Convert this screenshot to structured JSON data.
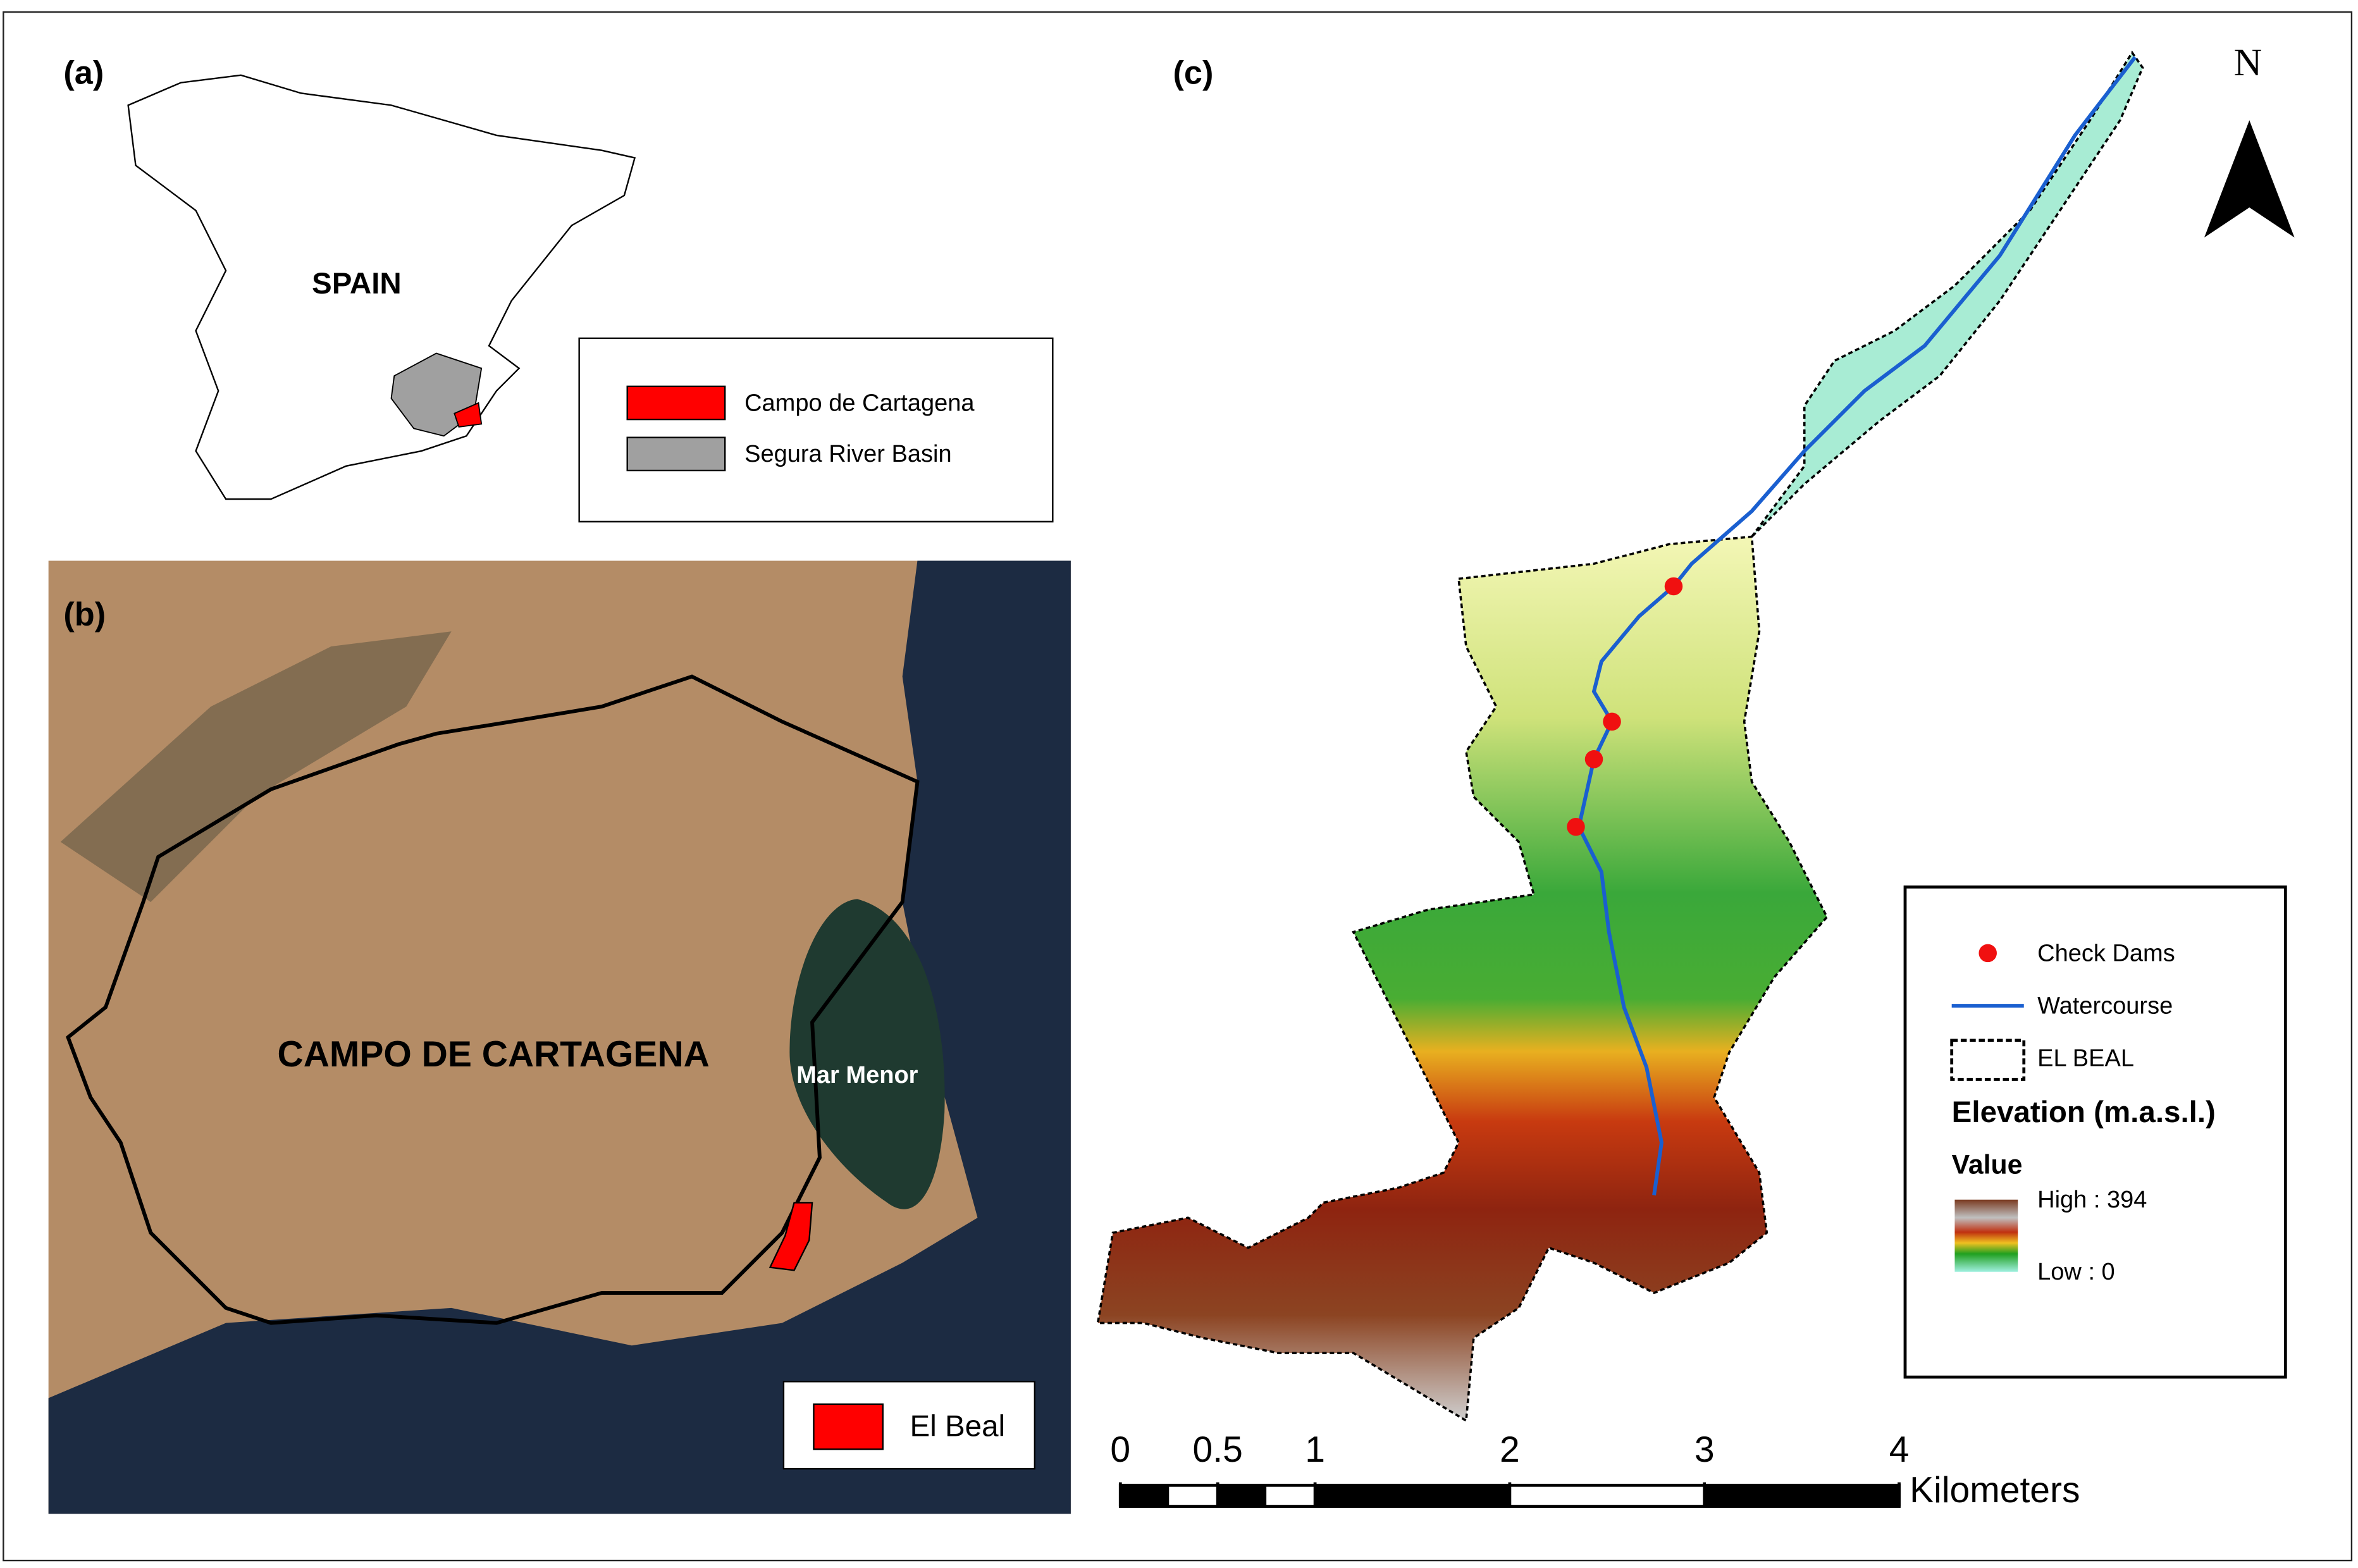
{
  "panel_a": {
    "label": "(a)",
    "country": "SPAIN",
    "legend": [
      {
        "label": "Campo de Cartagena",
        "color": "#ff0000"
      },
      {
        "label": "Segura River Basin",
        "color": "#a0a0a0"
      }
    ]
  },
  "panel_b": {
    "label": "(b)",
    "region": "CAMPO DE CARTAGENA",
    "lagoon": "Mar Menor",
    "legend": [
      {
        "label": "El Beal",
        "color": "#ff0000"
      }
    ]
  },
  "panel_c": {
    "label": "(c)",
    "north": "N",
    "legend": {
      "check_dams": "Check Dams",
      "watercourse": "Watercourse",
      "boundary": "EL BEAL",
      "elevation_title": "Elevation (m.a.s.l.)",
      "value_title": "Value",
      "high": "High : 394",
      "low": "Low : 0"
    },
    "scale_bar": {
      "ticks": [
        0,
        0.5,
        1,
        2,
        3,
        4
      ],
      "unit": "Kilometers"
    }
  }
}
